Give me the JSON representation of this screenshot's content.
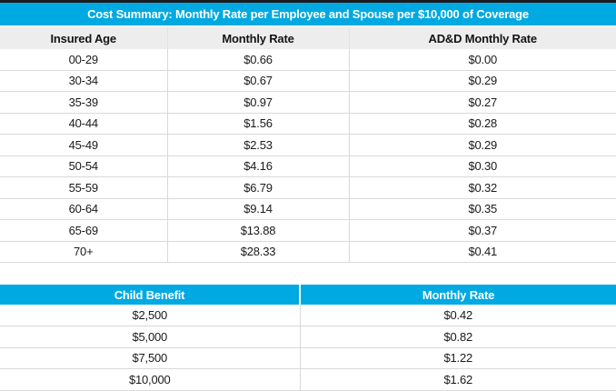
{
  "colors": {
    "accent_blue": "#00a9e2",
    "header_gray": "#ededed",
    "grid_line": "#d9d9d9",
    "top_border_dark": "#1b1b1f",
    "title_text": "#ffffff",
    "body_text": "#1a1a1a"
  },
  "cost_table": {
    "title": "Cost Summary: Monthly Rate per Employee and Spouse per $10,000 of Coverage",
    "columns": [
      "Insured Age",
      "Monthly Rate",
      "AD&D Monthly Rate"
    ],
    "rows": [
      [
        "00-29",
        "$0.66",
        "$0.00"
      ],
      [
        "30-34",
        "$0.67",
        "$0.29"
      ],
      [
        "35-39",
        "$0.97",
        "$0.27"
      ],
      [
        "40-44",
        "$1.56",
        "$0.28"
      ],
      [
        "45-49",
        "$2.53",
        "$0.29"
      ],
      [
        "50-54",
        "$4.16",
        "$0.30"
      ],
      [
        "55-59",
        "$6.79",
        "$0.32"
      ],
      [
        "60-64",
        "$9.14",
        "$0.35"
      ],
      [
        "65-69",
        "$13.88",
        "$0.37"
      ],
      [
        "70+",
        "$28.33",
        "$0.41"
      ]
    ]
  },
  "child_table": {
    "columns": [
      "Child Benefit",
      "Monthly Rate"
    ],
    "rows": [
      [
        "$2,500",
        "$0.42"
      ],
      [
        "$5,000",
        "$0.82"
      ],
      [
        "$7,500",
        "$1.22"
      ],
      [
        "$10,000",
        "$1.62"
      ]
    ]
  }
}
